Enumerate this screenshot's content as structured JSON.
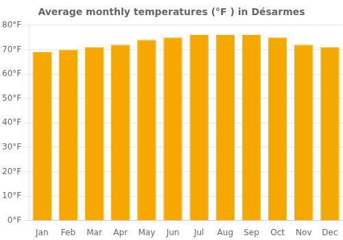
{
  "chart_data": {
    "type": "bar",
    "title": "Average monthly temperatures (°F ) in Désarmes",
    "categories": [
      "Jan",
      "Feb",
      "Mar",
      "Apr",
      "May",
      "Jun",
      "Jul",
      "Aug",
      "Sep",
      "Oct",
      "Nov",
      "Dec"
    ],
    "values": [
      69,
      70,
      71,
      72,
      74,
      75,
      76,
      76,
      76,
      75,
      72,
      71
    ],
    "color": "#F5A800",
    "ylim": [
      0,
      80
    ],
    "yticks": [
      {
        "value": 0,
        "label": "0°F"
      },
      {
        "value": 10,
        "label": "10°F"
      },
      {
        "value": 20,
        "label": "20°F"
      },
      {
        "value": 30,
        "label": "30°F"
      },
      {
        "value": 40,
        "label": "40°F"
      },
      {
        "value": 50,
        "label": "50°F"
      },
      {
        "value": 60,
        "label": "60°F"
      },
      {
        "value": 70,
        "label": "70°F"
      },
      {
        "value": 80,
        "label": "80°F"
      }
    ],
    "grid": true
  }
}
